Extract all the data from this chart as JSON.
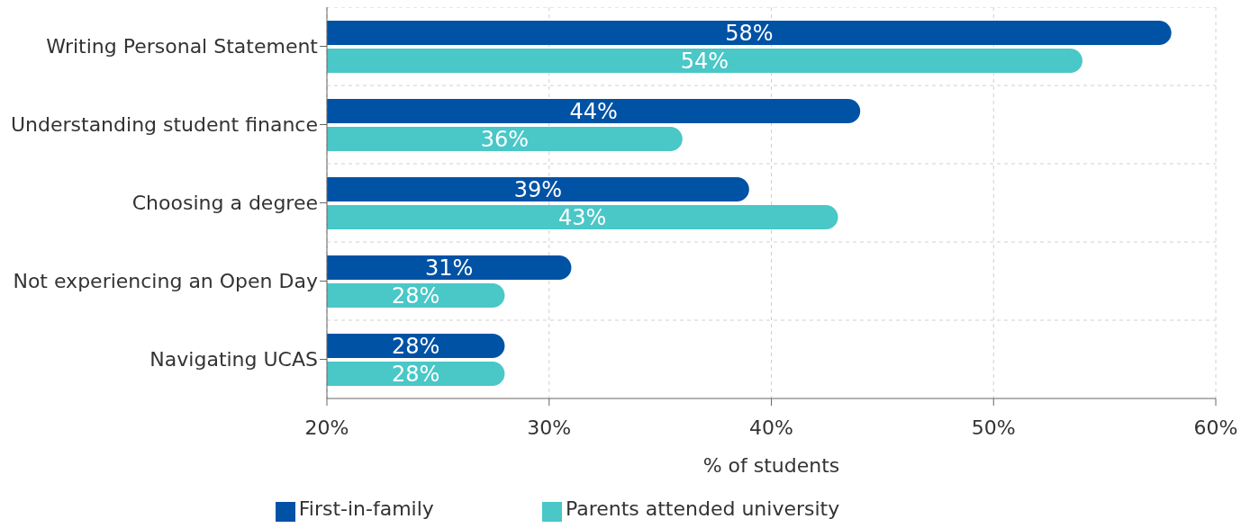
{
  "chart_data": {
    "type": "bar",
    "orientation": "horizontal",
    "xlabel": "% of students",
    "categories": [
      "Writing Personal Statement",
      "Understanding student finance",
      "Choosing a degree",
      "Not experiencing an Open Day",
      "Navigating UCAS"
    ],
    "series": [
      {
        "name": "First-in-family",
        "color": "#0052a5",
        "values": [
          58,
          44,
          39,
          31,
          28
        ],
        "value_labels": [
          "58%",
          "44%",
          "39%",
          "31%",
          "28%"
        ]
      },
      {
        "name": "Parents attended university",
        "color": "#4ac7c7",
        "values": [
          54,
          36,
          43,
          28,
          28
        ],
        "value_labels": [
          "54%",
          "36%",
          "43%",
          "28%",
          "28%"
        ]
      }
    ],
    "xlim": [
      20,
      60
    ],
    "xticks": [
      {
        "value": 20,
        "label": "20%"
      },
      {
        "value": 30,
        "label": "30%"
      },
      {
        "value": 40,
        "label": "40%"
      },
      {
        "value": 50,
        "label": "50%"
      },
      {
        "value": 60,
        "label": "60%"
      }
    ],
    "grid": true,
    "legend": "bottom"
  }
}
